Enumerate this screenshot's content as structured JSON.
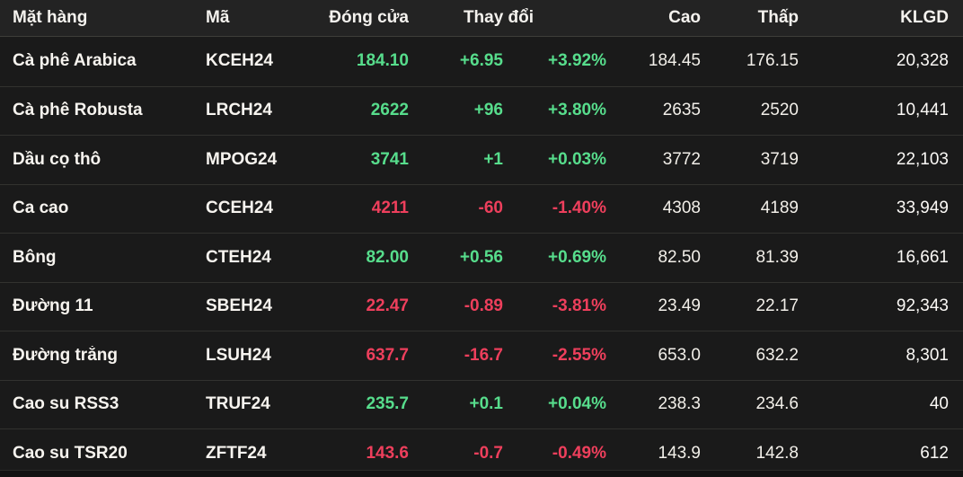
{
  "table": {
    "header": {
      "commodity": "Mặt hàng",
      "code": "Mã",
      "close": "Đóng cửa",
      "change": "Thay đổi",
      "high": "Cao",
      "low": "Thấp",
      "volume": "KLGD"
    },
    "rows": [
      {
        "name": "Cà phê Arabica",
        "code": "KCEH24",
        "close": "184.10",
        "change": "+6.95",
        "change_pct": "+3.92%",
        "high": "184.45",
        "low": "176.15",
        "volume": "20,328",
        "direction": "up"
      },
      {
        "name": "Cà phê Robusta",
        "code": "LRCH24",
        "close": "2622",
        "change": "+96",
        "change_pct": "+3.80%",
        "high": "2635",
        "low": "2520",
        "volume": "10,441",
        "direction": "up"
      },
      {
        "name": "Dầu cọ thô",
        "code": "MPOG24",
        "close": "3741",
        "change": "+1",
        "change_pct": "+0.03%",
        "high": "3772",
        "low": "3719",
        "volume": "22,103",
        "direction": "up"
      },
      {
        "name": "Ca cao",
        "code": "CCEH24",
        "close": "4211",
        "change": "-60",
        "change_pct": "-1.40%",
        "high": "4308",
        "low": "4189",
        "volume": "33,949",
        "direction": "down"
      },
      {
        "name": "Bông",
        "code": "CTEH24",
        "close": "82.00",
        "change": "+0.56",
        "change_pct": "+0.69%",
        "high": "82.50",
        "low": "81.39",
        "volume": "16,661",
        "direction": "up"
      },
      {
        "name": "Đường 11",
        "code": "SBEH24",
        "close": "22.47",
        "change": "-0.89",
        "change_pct": "-3.81%",
        "high": "23.49",
        "low": "22.17",
        "volume": "92,343",
        "direction": "down"
      },
      {
        "name": "Đường trắng",
        "code": "LSUH24",
        "close": "637.7",
        "change": "-16.7",
        "change_pct": "-2.55%",
        "high": "653.0",
        "low": "632.2",
        "volume": "8,301",
        "direction": "down"
      },
      {
        "name": "Cao su RSS3",
        "code": "TRUF24",
        "close": "235.7",
        "change": "+0.1",
        "change_pct": "+0.04%",
        "high": "238.3",
        "low": "234.6",
        "volume": "40",
        "direction": "up"
      },
      {
        "name": "Cao su TSR20",
        "code": "ZFTF24",
        "close": "143.6",
        "change": "-0.7",
        "change_pct": "-0.49%",
        "high": "143.9",
        "low": "142.8",
        "volume": "612",
        "direction": "down"
      }
    ],
    "colors": {
      "up": "#57dd8c",
      "down": "#ee3f5c"
    }
  }
}
